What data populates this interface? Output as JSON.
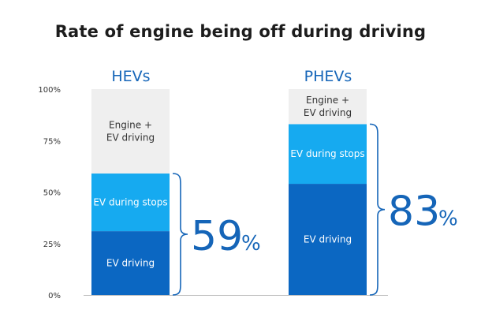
{
  "chart_data": {
    "type": "bar",
    "stacked": true,
    "title": "Rate of engine being off during driving",
    "categories": [
      "HEVs",
      "PHEVs"
    ],
    "ylim": [
      0,
      100
    ],
    "yticks": [
      "0%",
      "25%",
      "50%",
      "75%",
      "100%"
    ],
    "grid": false,
    "series": [
      {
        "name": "EV driving",
        "label": "EV driving",
        "values": [
          31,
          54
        ],
        "color": "#0b67c2"
      },
      {
        "name": "EV during stops",
        "label": "EV during stops",
        "values": [
          28,
          29
        ],
        "color": "#16aaf0"
      },
      {
        "name": "Engine + EV driving",
        "label": [
          "Engine +",
          "EV driving"
        ],
        "values": [
          41,
          17
        ],
        "color": "#efefef"
      }
    ],
    "totals": [
      {
        "number": "59",
        "unit": "%"
      },
      {
        "number": "83",
        "unit": "%"
      }
    ]
  }
}
